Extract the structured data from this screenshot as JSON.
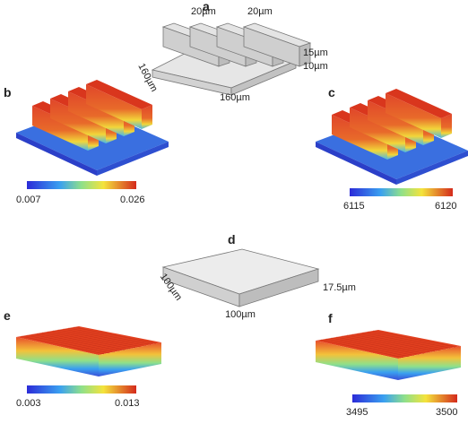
{
  "panels": {
    "a": {
      "label": "a",
      "dims": [
        "20µm",
        "20µm",
        "15µm",
        "10µm",
        "160µm",
        "160µm"
      ]
    },
    "b": {
      "label": "b",
      "colorbar": {
        "min": "0.007",
        "max": "0.026"
      }
    },
    "c": {
      "label": "c",
      "colorbar": {
        "min": "6115",
        "max": "6120"
      }
    },
    "d": {
      "label": "d",
      "dims": [
        "100µm",
        "100µm",
        "17.5µm"
      ]
    },
    "e": {
      "label": "e",
      "colorbar": {
        "min": "0.003",
        "max": "0.013"
      }
    },
    "f": {
      "label": "f",
      "colorbar": {
        "min": "3495",
        "max": "3500"
      }
    }
  }
}
